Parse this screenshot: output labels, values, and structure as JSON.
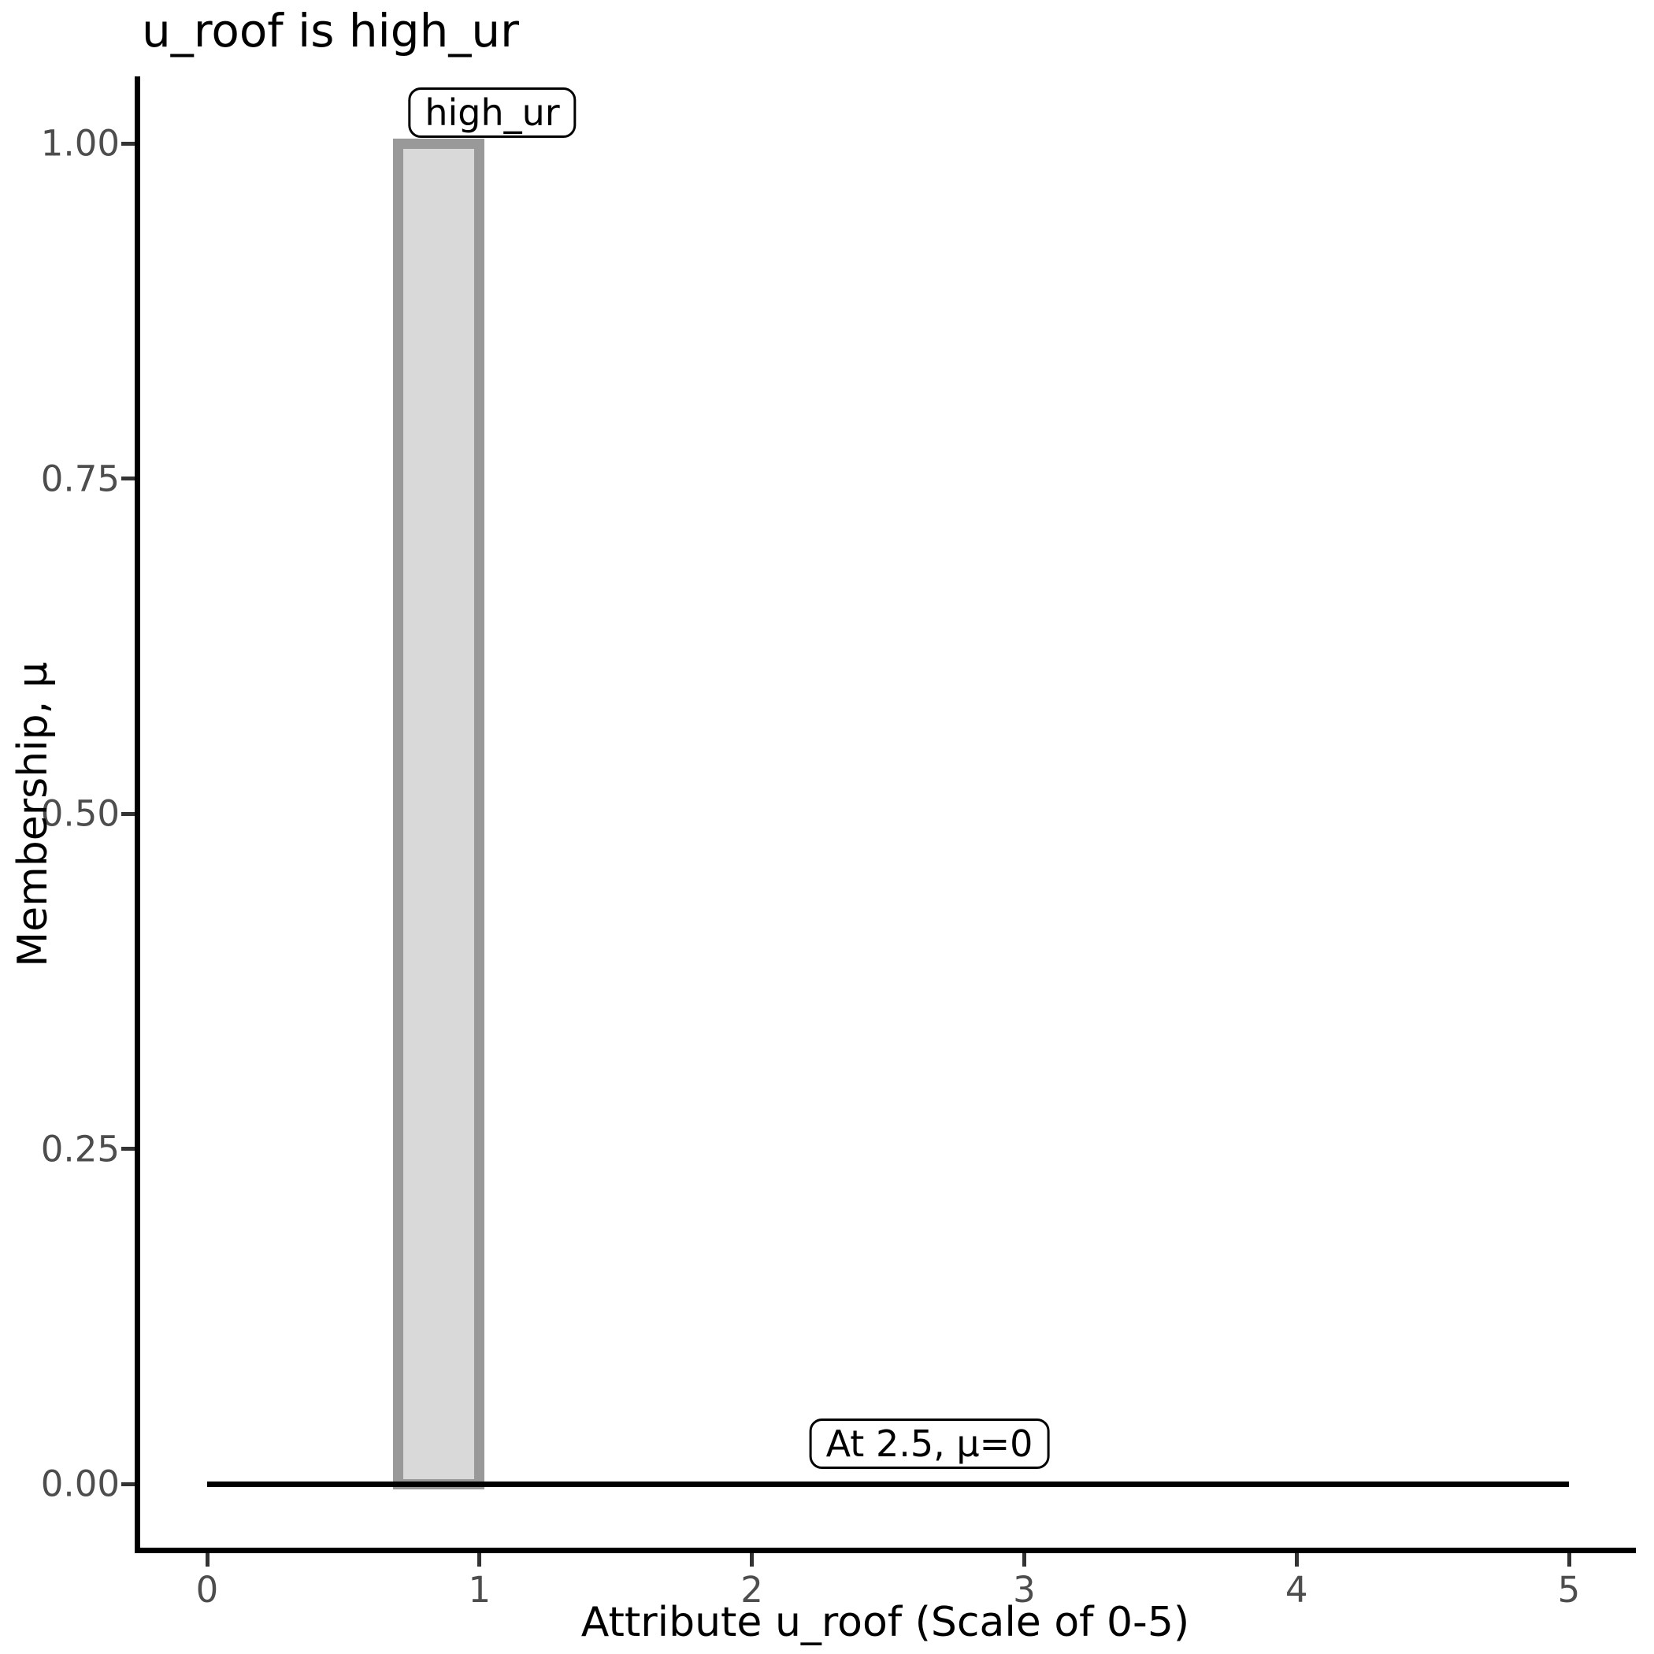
{
  "chart_data": {
    "type": "area",
    "title": "u_roof is high_ur",
    "xlabel": "Attribute u_roof (Scale of 0-5)",
    "ylabel": "Membership, μ",
    "xlim": [
      0,
      5
    ],
    "ylim": [
      0,
      1
    ],
    "x_ticks": [
      0,
      1,
      2,
      3,
      4,
      5
    ],
    "y_ticks": [
      0,
      0.25,
      0.5,
      0.75,
      1
    ],
    "y_tick_labels": [
      "0.00",
      "0.25",
      "0.50",
      "0.75",
      "1.00"
    ],
    "grid": false,
    "legend_position": "none",
    "series": [
      {
        "name": "high_ur",
        "kind": "fuzzy-membership-function",
        "points": [
          [
            0,
            0
          ],
          [
            0.7,
            0
          ],
          [
            0.7,
            1.0
          ],
          [
            1.0,
            1.0
          ],
          [
            1.0,
            0
          ],
          [
            5,
            0
          ]
        ],
        "bar": {
          "x_start": 0.7,
          "x_end": 1.0,
          "mu": 1.0
        },
        "fill_color": "#d9d9d9",
        "stroke_color": "#999999",
        "baseline_color": "#000000"
      }
    ],
    "annotations": [
      {
        "text": "high_ur",
        "x": 1.047,
        "y": 1.023
      },
      {
        "text": "At 2.5, μ=0",
        "x": 2.652,
        "y": 0.03
      }
    ]
  },
  "colors": {
    "background": "#ffffff",
    "axis_line": "#000000",
    "tick_mark": "#333333",
    "tick_label": "#4d4d4d",
    "title_text": "#000000",
    "bar_fill": "#d9d9d9",
    "bar_stroke": "#999999",
    "annotation_border": "#000000"
  }
}
